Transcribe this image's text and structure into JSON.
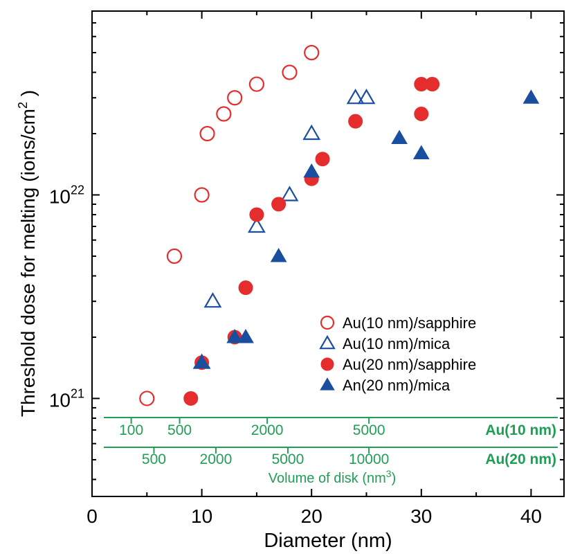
{
  "chart_data": {
    "type": "scatter",
    "xlabel": "Diameter (nm)",
    "ylabel_main": "Threshold dose for melting (ions/cm",
    "ylabel_sup": "2",
    "ylabel_close": " )",
    "xlim": [
      0,
      43
    ],
    "ylim": [
      3.3e+20,
      8e+22
    ],
    "yscale": "log",
    "x_ticks": [
      "0",
      "10",
      "20",
      "30",
      "40"
    ],
    "y_ticks": [
      {
        "base": "10",
        "exp": "21",
        "value": 1e+21
      },
      {
        "base": "10",
        "exp": "22",
        "value": 1e+22
      }
    ],
    "series": [
      {
        "name": "Au(10 nm)/sapphire",
        "marker": "circle",
        "filled": false,
        "color": "#e52d2d",
        "x": [
          5,
          7.5,
          10,
          10.5,
          12,
          13,
          15,
          18,
          20
        ],
        "y": [
          1e+21,
          5e+21,
          1e+22,
          2e+22,
          2.5e+22,
          3e+22,
          3.5e+22,
          4e+22,
          5e+22
        ]
      },
      {
        "name": "Au(10 nm)/mica",
        "marker": "triangle",
        "filled": false,
        "color": "#1a4e9e",
        "x": [
          10,
          11,
          15,
          18,
          20,
          24,
          25
        ],
        "y": [
          1.5e+21,
          3e+21,
          7e+21,
          1e+22,
          2e+22,
          3e+22,
          3e+22
        ]
      },
      {
        "name": "Au(20 nm)/sapphire",
        "marker": "circle",
        "filled": true,
        "color": "#e52d2d",
        "x": [
          9,
          10,
          13,
          14,
          15,
          17,
          20,
          21,
          24,
          30,
          30,
          31
        ],
        "y": [
          1e+21,
          1.5e+21,
          2e+21,
          3.5e+21,
          8e+21,
          9e+21,
          1.2e+22,
          1.5e+22,
          2.3e+22,
          2.5e+22,
          3.5e+22,
          3.5e+22
        ]
      },
      {
        "name": "An(20 nm)/mica",
        "marker": "triangle",
        "filled": true,
        "color": "#1a4e9e",
        "x": [
          10,
          13,
          14,
          17,
          20,
          28,
          30,
          40
        ],
        "y": [
          1.5e+21,
          2e+21,
          2e+21,
          5e+21,
          1.3e+22,
          1.9e+22,
          1.6e+22,
          3e+22
        ]
      }
    ],
    "legend_position": "lower-right",
    "volume_axes": {
      "color": "#1f9e55",
      "label_main": "Volume of disk (nm",
      "label_sup": "3",
      "label_close": ")",
      "rows": [
        {
          "name": "Au(10 nm)",
          "ticks": [
            {
              "label": "100",
              "diameter": 3.57
            },
            {
              "label": "500",
              "diameter": 7.98
            },
            {
              "label": "2000",
              "diameter": 15.96
            },
            {
              "label": "5000",
              "diameter": 25.23
            }
          ]
        },
        {
          "name": "Au(20 nm)",
          "ticks": [
            {
              "label": "500",
              "diameter": 5.64
            },
            {
              "label": "2000",
              "diameter": 11.28
            },
            {
              "label": "5000",
              "diameter": 17.84
            },
            {
              "label": "10000",
              "diameter": 25.23
            }
          ]
        }
      ]
    }
  }
}
